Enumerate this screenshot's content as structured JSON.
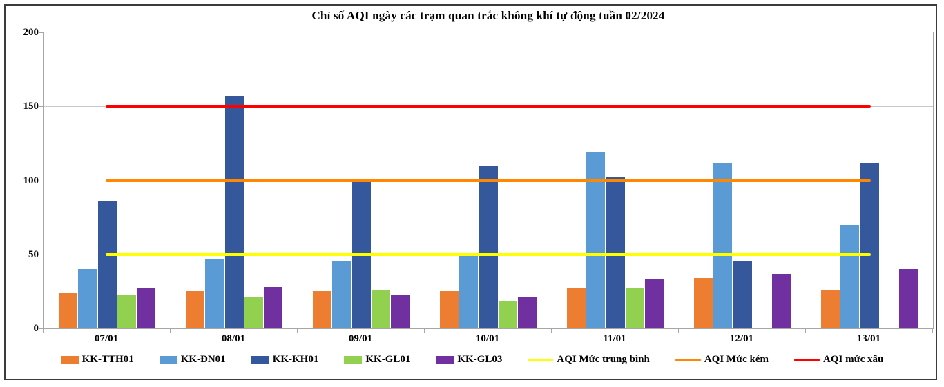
{
  "chart_data": {
    "type": "bar",
    "title": "Chỉ số AQI ngày các trạm quan trắc không khí tự động tuần 02/2024",
    "categories": [
      "07/01",
      "08/01",
      "09/01",
      "10/01",
      "11/01",
      "12/01",
      "13/01"
    ],
    "series": [
      {
        "name": "KK-TTH01",
        "color": "#ED7D31",
        "values": [
          24,
          25,
          25,
          25,
          27,
          34,
          26
        ]
      },
      {
        "name": "KK-ĐN01",
        "color": "#5B9BD5",
        "values": [
          40,
          47,
          45,
          51,
          119,
          112,
          70
        ]
      },
      {
        "name": "KK-KH01",
        "color": "#35589D",
        "values": [
          86,
          157,
          99,
          110,
          102,
          45,
          112
        ]
      },
      {
        "name": "KK-GL01",
        "color": "#92D050",
        "values": [
          23,
          21,
          26,
          18,
          27,
          null,
          null
        ]
      },
      {
        "name": "KK-GL03",
        "color": "#7030A0",
        "values": [
          27,
          28,
          23,
          21,
          33,
          37,
          40
        ]
      }
    ],
    "reference_lines": [
      {
        "name": "AQI Mức trung bình",
        "value": 50,
        "color": "#FFFF00"
      },
      {
        "name": "AQI Mức kém",
        "value": 100,
        "color": "#FF8800"
      },
      {
        "name": "AQI mức xấu",
        "value": 150,
        "color": "#FF0000"
      }
    ],
    "y_ticks": [
      0,
      50,
      100,
      150,
      200
    ],
    "ylim": [
      0,
      200
    ],
    "xlabel": "",
    "ylabel": "",
    "grid": true,
    "legend_position": "bottom",
    "colors": {
      "gridline": "#C9C9C9",
      "axis": "#A6A6A6",
      "frame_border": "#3B3B3B",
      "background": "#FFFFFF",
      "text": "#000000"
    }
  }
}
